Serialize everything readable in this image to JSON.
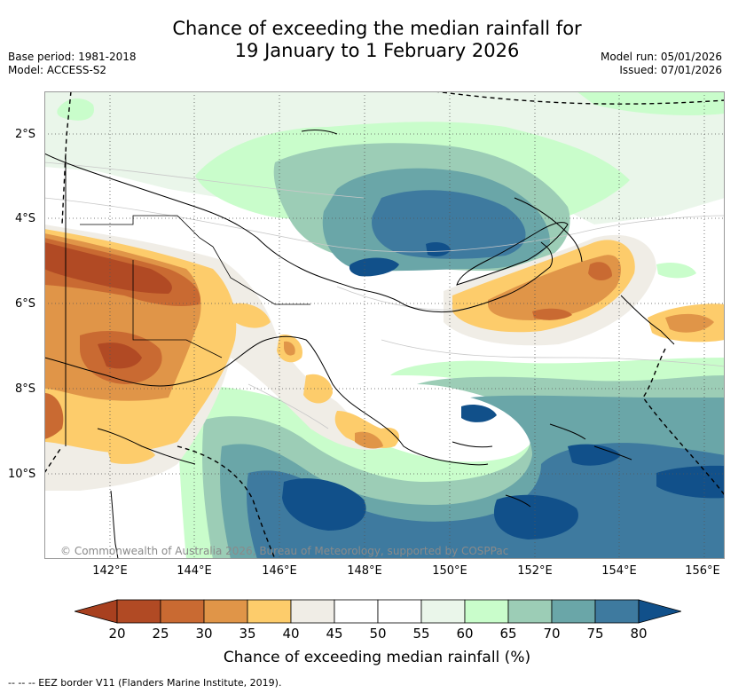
{
  "title": {
    "line1": "Chance of exceeding the median rainfall for",
    "line2": "19 January to 1 February 2026"
  },
  "meta": {
    "base_period": "Base period: 1981-2018",
    "model": "Model: ACCESS-S2",
    "model_run": "Model run: 05/01/2026",
    "issued": "Issued: 07/01/2026"
  },
  "copyright": "© Commonwealth of Australia 2026, Bureau of Meteorology, supported by COSPPac",
  "lat_labels": [
    "2°S",
    "4°S",
    "6°S",
    "8°S",
    "10°S"
  ],
  "lon_labels": [
    "142°E",
    "144°E",
    "146°E",
    "148°E",
    "150°E",
    "152°E",
    "154°E",
    "156°E"
  ],
  "colorbar": {
    "title": "Chance of exceeding median rainfall (%)",
    "ticks": [
      "20",
      "25",
      "30",
      "35",
      "40",
      "45",
      "50",
      "55",
      "60",
      "65",
      "70",
      "75",
      "80"
    ],
    "colors": {
      "lt20": "#a8401f",
      "c20_25": "#b14a24",
      "c25_30": "#c96a32",
      "c30_35": "#e09548",
      "c35_40": "#fdcc6b",
      "c40_45": "#f0ede6",
      "c45_50": "#ffffff",
      "c50_55": "#ffffff",
      "c55_60": "#eaf6ea",
      "c60_65": "#c9fdcb",
      "c65_70": "#9ccdb6",
      "c70_75": "#6aa6a8",
      "c75_80": "#3e7a9f",
      "gt80": "#11508a"
    }
  },
  "footer": "--  --  -- EEZ border V11 (Flanders Marine Institute, 2019)."
}
